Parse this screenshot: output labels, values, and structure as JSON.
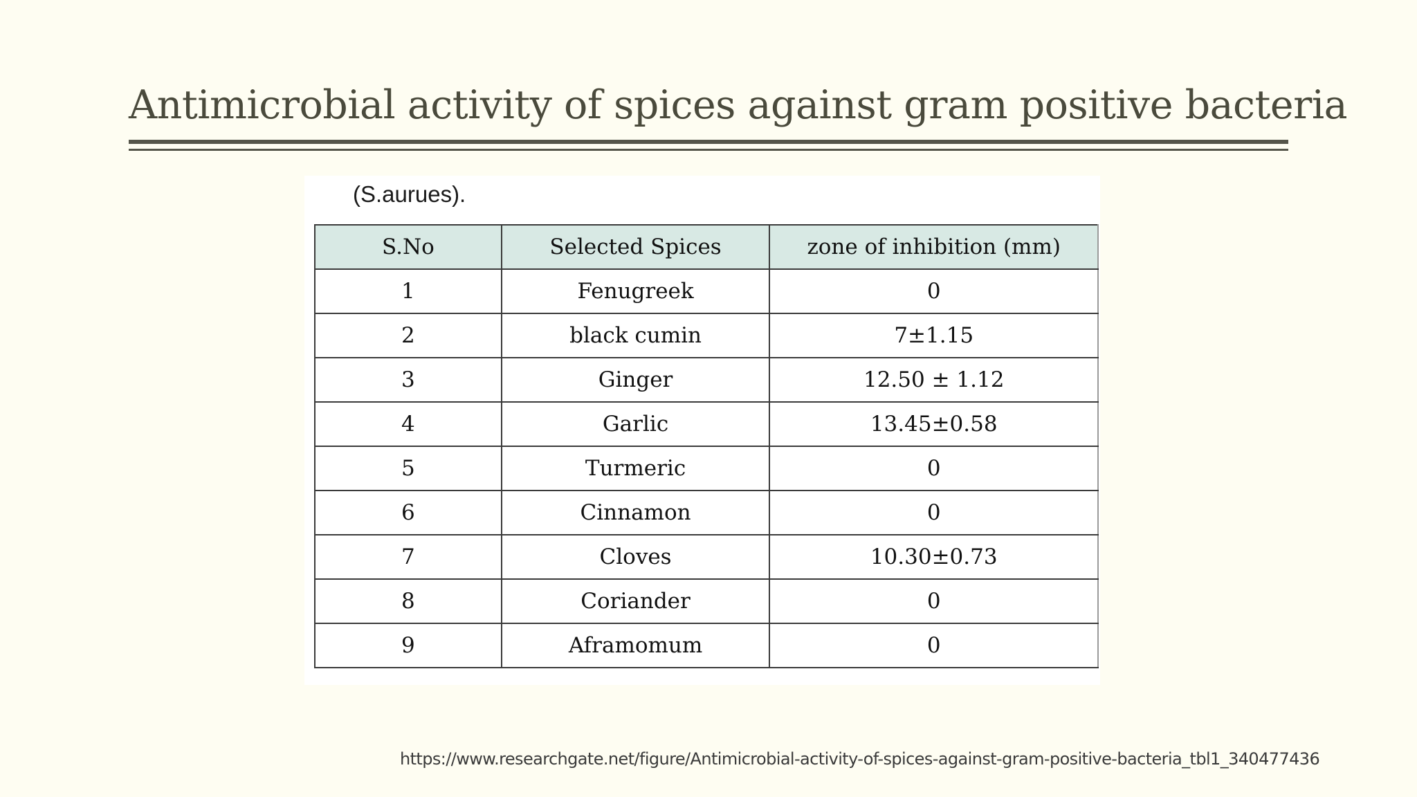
{
  "slide": {
    "title": "Antimicrobial activity of spices against gram positive bacteria",
    "source_url": "https://www.researchgate.net/figure/Antimicrobial-activity-of-spices-against-gram-positive-bacteria_tbl1_340477436"
  },
  "table": {
    "caption": "(S.aurues).",
    "headers": [
      "S.No",
      "Selected Spices",
      "zone of inhibition (mm)"
    ],
    "rows": [
      [
        "1",
        "Fenugreek",
        "0"
      ],
      [
        "2",
        "black cumin",
        "7±1.15"
      ],
      [
        "3",
        "Ginger",
        "12.50 ± 1.12"
      ],
      [
        "4",
        "Garlic",
        "13.45±0.58"
      ],
      [
        "5",
        "Turmeric",
        "0"
      ],
      [
        "6",
        "Cinnamon",
        "0"
      ],
      [
        "7",
        "Cloves",
        "10.30±0.73"
      ],
      [
        "8",
        "Coriander",
        "0"
      ],
      [
        "9",
        "Aframomum",
        "0"
      ]
    ]
  },
  "colors": {
    "background": "#fefdf2",
    "title": "#4a4a3c",
    "header_fill": "#d8e9e4"
  }
}
